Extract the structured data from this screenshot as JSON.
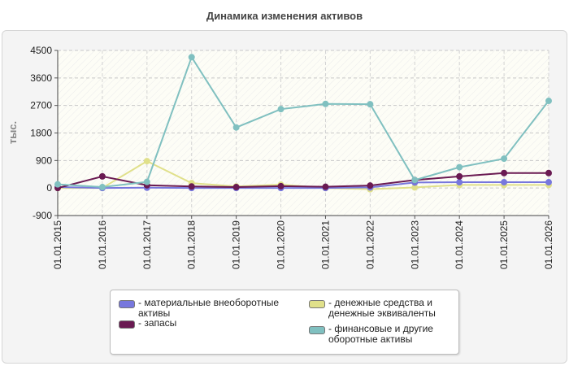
{
  "chart_data": {
    "type": "line",
    "title": "Динамика изменения активов",
    "ylabel": "тыс.",
    "ylim": [
      -900,
      4500
    ],
    "yticks": [
      -900,
      0,
      900,
      1800,
      2700,
      3600,
      4500
    ],
    "categories": [
      "01.01.2015",
      "01.01.2016",
      "01.01.2017",
      "01.01.2018",
      "01.01.2019",
      "01.01.2020",
      "01.01.2021",
      "01.01.2022",
      "01.01.2023",
      "01.01.2024",
      "01.01.2025",
      "01.01.2026"
    ],
    "grid": true,
    "legend_position": "bottom",
    "series": [
      {
        "name": "- материальные внеоборотные активы",
        "color": "#7777dd",
        "values": [
          30,
          0,
          10,
          0,
          0,
          0,
          0,
          20,
          180,
          190,
          190,
          190
        ]
      },
      {
        "name": "- денежные средства и денежные эквиваленты",
        "color": "#e0e08a",
        "values": [
          0,
          0,
          880,
          160,
          50,
          110,
          0,
          -40,
          20,
          100,
          100,
          100
        ]
      },
      {
        "name": "- запасы",
        "color": "#6a1a52",
        "values": [
          0,
          380,
          90,
          50,
          30,
          60,
          40,
          80,
          260,
          380,
          490,
          490
        ]
      },
      {
        "name": "- финансовые и другие оборотные активы",
        "color": "#80c0c0",
        "values": [
          120,
          30,
          200,
          4280,
          1980,
          2580,
          2750,
          2740,
          260,
          680,
          960,
          2850
        ]
      }
    ]
  }
}
